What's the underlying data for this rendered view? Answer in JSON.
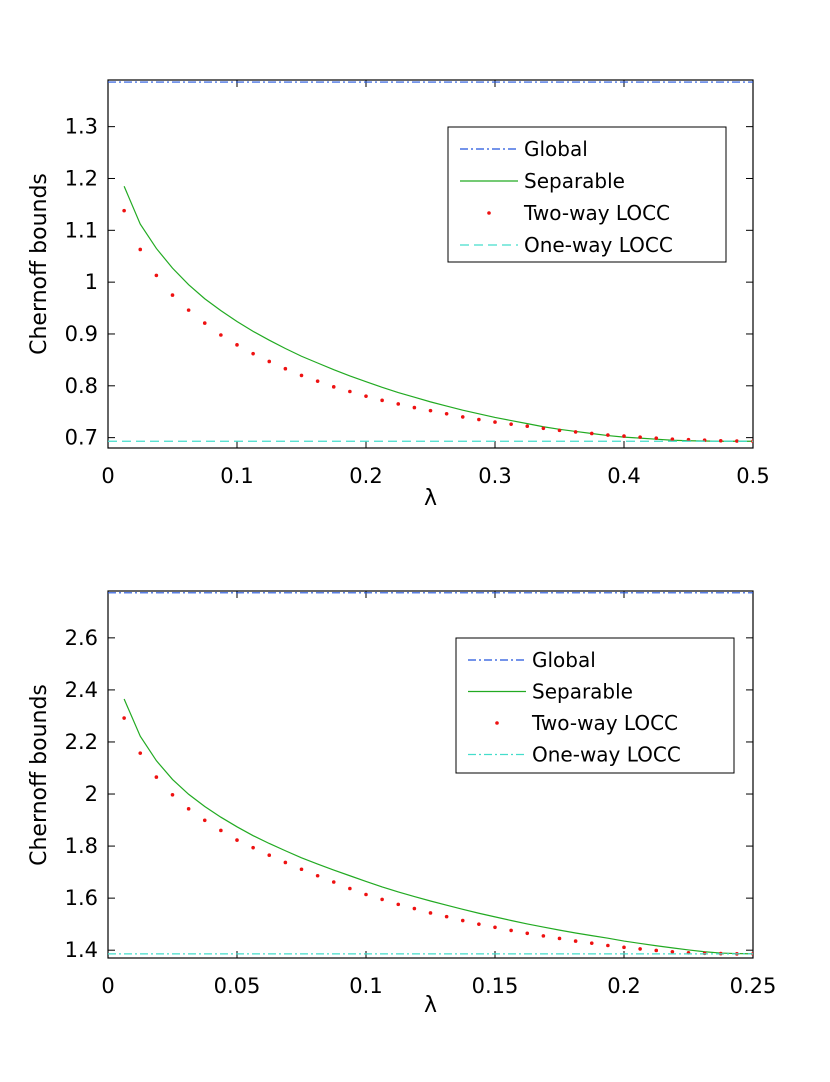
{
  "chart_data": [
    {
      "type": "line",
      "xlabel": "λ",
      "ylabel": "Chernoff bounds",
      "xlim": [
        0,
        0.5
      ],
      "ylim": [
        0.68,
        1.39
      ],
      "xticks": [
        0,
        0.1,
        0.2,
        0.3,
        0.4,
        0.5
      ],
      "xtick_labels": [
        "0",
        "0.1",
        "0.2",
        "0.3",
        "0.4",
        "0.5"
      ],
      "yticks": [
        0.7,
        0.8,
        0.9,
        1.0,
        1.1,
        1.2,
        1.3
      ],
      "ytick_labels": [
        "0.7",
        "0.8",
        "0.9",
        "1",
        "1.1",
        "1.2",
        "1.3"
      ],
      "legend_position": "top-right",
      "series": [
        {
          "name": "Global",
          "style": "dashdot",
          "color": "#2255dd",
          "x": [
            0,
            0.5
          ],
          "values": [
            1.386,
            1.386
          ]
        },
        {
          "name": "Separable",
          "style": "solid",
          "color": "#22aa22",
          "x": [
            0.0125,
            0.025,
            0.0375,
            0.05,
            0.0625,
            0.075,
            0.0875,
            0.1,
            0.1125,
            0.125,
            0.1375,
            0.15,
            0.1625,
            0.175,
            0.1875,
            0.2,
            0.2125,
            0.225,
            0.2375,
            0.25,
            0.2625,
            0.275,
            0.2875,
            0.3,
            0.3125,
            0.325,
            0.3375,
            0.35,
            0.3625,
            0.375,
            0.3875,
            0.4,
            0.4125,
            0.425,
            0.4375,
            0.45,
            0.4625,
            0.475,
            0.4875,
            0.5
          ],
          "values": [
            1.185,
            1.112,
            1.065,
            1.027,
            0.995,
            0.968,
            0.945,
            0.924,
            0.905,
            0.888,
            0.872,
            0.857,
            0.844,
            0.831,
            0.819,
            0.808,
            0.797,
            0.787,
            0.778,
            0.769,
            0.761,
            0.753,
            0.746,
            0.739,
            0.733,
            0.727,
            0.721,
            0.716,
            0.712,
            0.708,
            0.704,
            0.701,
            0.699,
            0.697,
            0.695,
            0.694,
            0.6935,
            0.693,
            0.693,
            0.693
          ]
        },
        {
          "name": "Two-way LOCC",
          "style": "dots",
          "color": "#ee1111",
          "x": [
            0.0125,
            0.025,
            0.0375,
            0.05,
            0.0625,
            0.075,
            0.0875,
            0.1,
            0.1125,
            0.125,
            0.1375,
            0.15,
            0.1625,
            0.175,
            0.1875,
            0.2,
            0.2125,
            0.225,
            0.2375,
            0.25,
            0.2625,
            0.275,
            0.2875,
            0.3,
            0.3125,
            0.325,
            0.3375,
            0.35,
            0.3625,
            0.375,
            0.3875,
            0.4,
            0.4125,
            0.425,
            0.4375,
            0.45,
            0.4625,
            0.475,
            0.4875,
            0.5
          ],
          "values": [
            1.138,
            1.063,
            1.013,
            0.975,
            0.946,
            0.921,
            0.898,
            0.879,
            0.862,
            0.847,
            0.833,
            0.82,
            0.809,
            0.798,
            0.789,
            0.78,
            0.772,
            0.765,
            0.758,
            0.752,
            0.746,
            0.74,
            0.735,
            0.73,
            0.726,
            0.722,
            0.718,
            0.714,
            0.711,
            0.708,
            0.705,
            0.703,
            0.701,
            0.699,
            0.697,
            0.696,
            0.695,
            0.694,
            0.6935,
            0.693
          ]
        },
        {
          "name": "One-way LOCC",
          "style": "dashed",
          "color": "#44ddcc",
          "x": [
            0,
            0.5
          ],
          "values": [
            0.693,
            0.693
          ]
        }
      ]
    },
    {
      "type": "line",
      "xlabel": "λ",
      "ylabel": "Chernoff bounds",
      "xlim": [
        0,
        0.25
      ],
      "ylim": [
        1.37,
        2.78
      ],
      "xticks": [
        0,
        0.05,
        0.1,
        0.15,
        0.2,
        0.25
      ],
      "xtick_labels": [
        "0",
        "0.05",
        "0.1",
        "0.15",
        "0.2",
        "0.25"
      ],
      "yticks": [
        1.4,
        1.6,
        1.8,
        2.0,
        2.2,
        2.4,
        2.6
      ],
      "ytick_labels": [
        "1.4",
        "1.6",
        "1.8",
        "2",
        "2.2",
        "2.4",
        "2.6"
      ],
      "legend_position": "top-right",
      "series": [
        {
          "name": "Global",
          "style": "dashdot",
          "color": "#2255dd",
          "x": [
            0,
            0.25
          ],
          "values": [
            2.773,
            2.773
          ]
        },
        {
          "name": "Separable",
          "style": "solid",
          "color": "#22aa22",
          "x": [
            0.00625,
            0.0125,
            0.01875,
            0.025,
            0.03125,
            0.0375,
            0.04375,
            0.05,
            0.05625,
            0.0625,
            0.06875,
            0.075,
            0.08125,
            0.0875,
            0.09375,
            0.1,
            0.10625,
            0.1125,
            0.11875,
            0.125,
            0.13125,
            0.1375,
            0.14375,
            0.15,
            0.15625,
            0.1625,
            0.16875,
            0.175,
            0.18125,
            0.1875,
            0.19375,
            0.2,
            0.20625,
            0.2125,
            0.21875,
            0.225,
            0.23125,
            0.2375,
            0.24375,
            0.25
          ],
          "values": [
            2.365,
            2.222,
            2.128,
            2.056,
            1.999,
            1.952,
            1.911,
            1.874,
            1.84,
            1.81,
            1.782,
            1.755,
            1.731,
            1.708,
            1.686,
            1.664,
            1.643,
            1.624,
            1.606,
            1.589,
            1.573,
            1.557,
            1.542,
            1.528,
            1.514,
            1.501,
            1.489,
            1.477,
            1.466,
            1.456,
            1.446,
            1.435,
            1.426,
            1.417,
            1.409,
            1.401,
            1.394,
            1.389,
            1.387,
            1.386
          ]
        },
        {
          "name": "Two-way LOCC",
          "style": "dots",
          "color": "#ee1111",
          "x": [
            0.00625,
            0.0125,
            0.01875,
            0.025,
            0.03125,
            0.0375,
            0.04375,
            0.05,
            0.05625,
            0.0625,
            0.06875,
            0.075,
            0.08125,
            0.0875,
            0.09375,
            0.1,
            0.10625,
            0.1125,
            0.11875,
            0.125,
            0.13125,
            0.1375,
            0.14375,
            0.15,
            0.15625,
            0.1625,
            0.16875,
            0.175,
            0.18125,
            0.1875,
            0.19375,
            0.2,
            0.20625,
            0.2125,
            0.21875,
            0.225,
            0.23125,
            0.2375,
            0.24375,
            0.25
          ],
          "values": [
            2.292,
            2.157,
            2.065,
            1.997,
            1.943,
            1.899,
            1.86,
            1.823,
            1.794,
            1.765,
            1.737,
            1.711,
            1.686,
            1.662,
            1.637,
            1.614,
            1.595,
            1.576,
            1.56,
            1.543,
            1.529,
            1.514,
            1.5,
            1.488,
            1.476,
            1.465,
            1.455,
            1.445,
            1.435,
            1.427,
            1.418,
            1.411,
            1.405,
            1.399,
            1.394,
            1.39,
            1.388,
            1.387,
            1.386,
            1.386
          ]
        },
        {
          "name": "One-way LOCC",
          "style": "dashdot",
          "color": "#44ddcc",
          "x": [
            0,
            0.25
          ],
          "values": [
            1.386,
            1.386
          ]
        }
      ]
    }
  ]
}
